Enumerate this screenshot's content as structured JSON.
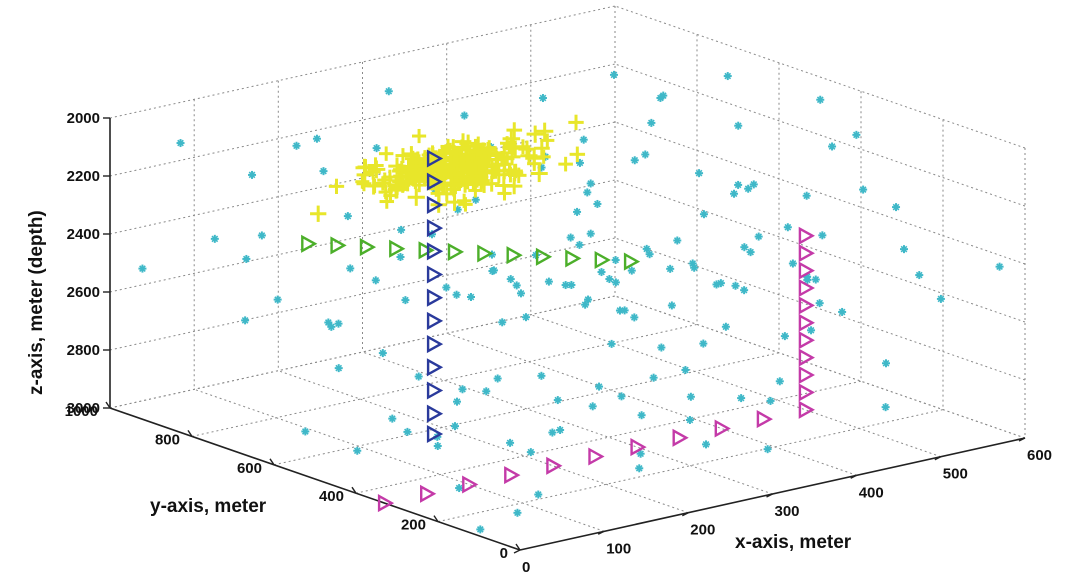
{
  "chart_data": {
    "type": "scatter3d",
    "xlabel": "x-axis, meter",
    "ylabel": "y-axis, meter",
    "zlabel": "z-axis, meter (depth)",
    "xlim": [
      0,
      600
    ],
    "ylim": [
      0,
      1000
    ],
    "zlim": [
      2000,
      3000
    ],
    "z_reversed": true,
    "grid": true,
    "x_ticks": [
      "0",
      "100",
      "200",
      "300",
      "400",
      "500",
      "600"
    ],
    "y_ticks": [
      "0",
      "200",
      "400",
      "600",
      "800",
      "1000"
    ],
    "z_ticks": [
      "2000",
      "2200",
      "2400",
      "2600",
      "2800",
      "3000"
    ],
    "series": [
      {
        "marker": "triangle-right-open",
        "color": "#4caf2a",
        "points": [
          [
            50,
            620,
            2280
          ],
          [
            80,
            610,
            2300
          ],
          [
            110,
            600,
            2320
          ],
          [
            140,
            590,
            2340
          ],
          [
            170,
            580,
            2360
          ],
          [
            200,
            570,
            2380
          ],
          [
            230,
            560,
            2400
          ],
          [
            260,
            550,
            2420
          ],
          [
            290,
            540,
            2440
          ],
          [
            320,
            530,
            2460
          ],
          [
            350,
            520,
            2480
          ],
          [
            380,
            510,
            2500
          ]
        ]
      },
      {
        "marker": "triangle-right-open",
        "color": "#2a3a9c",
        "points": [
          [
            180,
            580,
            2050
          ],
          [
            180,
            580,
            2130
          ],
          [
            180,
            580,
            2210
          ],
          [
            180,
            580,
            2290
          ],
          [
            180,
            580,
            2370
          ],
          [
            180,
            580,
            2450
          ],
          [
            180,
            580,
            2530
          ],
          [
            180,
            580,
            2610
          ],
          [
            180,
            580,
            2690
          ],
          [
            180,
            580,
            2770
          ],
          [
            180,
            580,
            2850
          ],
          [
            180,
            580,
            2930
          ],
          [
            180,
            580,
            3000
          ]
        ]
      },
      {
        "marker": "triangle-right-open",
        "color": "#c43aa8",
        "points": [
          [
            0,
            330,
            3000
          ],
          [
            50,
            330,
            3000
          ],
          [
            100,
            330,
            3000
          ],
          [
            150,
            330,
            3000
          ],
          [
            200,
            330,
            3000
          ],
          [
            250,
            330,
            3000
          ],
          [
            300,
            330,
            3000
          ],
          [
            350,
            330,
            3000
          ],
          [
            400,
            330,
            3000
          ],
          [
            450,
            330,
            3000
          ]
        ]
      },
      {
        "marker": "triangle-right-open",
        "color": "#c43aa8",
        "points": [
          [
            500,
            330,
            2400
          ],
          [
            500,
            330,
            2460
          ],
          [
            500,
            330,
            2520
          ],
          [
            500,
            330,
            2580
          ],
          [
            500,
            330,
            2640
          ],
          [
            500,
            330,
            2700
          ],
          [
            500,
            330,
            2760
          ],
          [
            500,
            330,
            2820
          ],
          [
            500,
            330,
            2880
          ],
          [
            500,
            330,
            2940
          ],
          [
            500,
            330,
            3000
          ]
        ]
      },
      {
        "marker": "plus",
        "color": "#e8e62a",
        "center": [
          260,
          700,
          2200
        ],
        "spread": [
          80,
          80,
          60
        ],
        "count": 260
      },
      {
        "marker": "asterisk",
        "color": "#3fb8c8",
        "scatter_extent": {
          "x": [
            0,
            600
          ],
          "y": [
            0,
            1000
          ],
          "z": [
            2000,
            3000
          ]
        },
        "count": 160
      }
    ]
  }
}
